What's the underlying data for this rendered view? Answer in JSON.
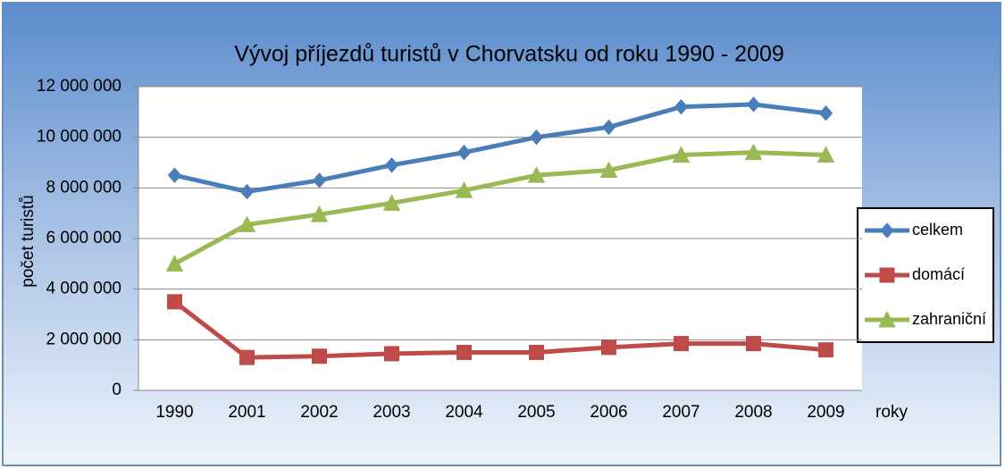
{
  "chart_data": {
    "type": "line",
    "title": "Vývoj příjezdů turistů v Chorvatsku od roku 1990 - 2009",
    "y_label": "počet turistů",
    "x_label": "roky",
    "categories": [
      "1990",
      "2001",
      "2002",
      "2003",
      "2004",
      "2005",
      "2006",
      "2007",
      "2008",
      "2009"
    ],
    "series": [
      {
        "name": "celkem",
        "color": "#4a7ebb",
        "marker": "diamond",
        "values": [
          8500000,
          7850000,
          8300000,
          8900000,
          9400000,
          10000000,
          10400000,
          11200000,
          11300000,
          10950000
        ]
      },
      {
        "name": "domácí",
        "color": "#be4b48",
        "marker": "square",
        "values": [
          3500000,
          1300000,
          1350000,
          1450000,
          1500000,
          1500000,
          1700000,
          1850000,
          1850000,
          1600000
        ]
      },
      {
        "name": "zahraniční",
        "color": "#98b954",
        "marker": "triangle",
        "values": [
          5000000,
          6550000,
          6950000,
          7400000,
          7900000,
          8500000,
          8700000,
          9300000,
          9400000,
          9300000
        ]
      }
    ],
    "ylim": [
      0,
      12000000
    ],
    "yticks": [
      0,
      {
        "value": 2000000,
        "label": "2 000 000"
      },
      {
        "value": 4000000,
        "label": "4 000 000"
      },
      {
        "value": 6000000,
        "label": "6 000 000"
      },
      {
        "value": 8000000,
        "label": "8 000 000"
      },
      {
        "value": 10000000,
        "label": "10 000 000"
      },
      {
        "value": 12000000,
        "label": "12 000 000"
      }
    ],
    "grid": true,
    "legend": "right"
  }
}
